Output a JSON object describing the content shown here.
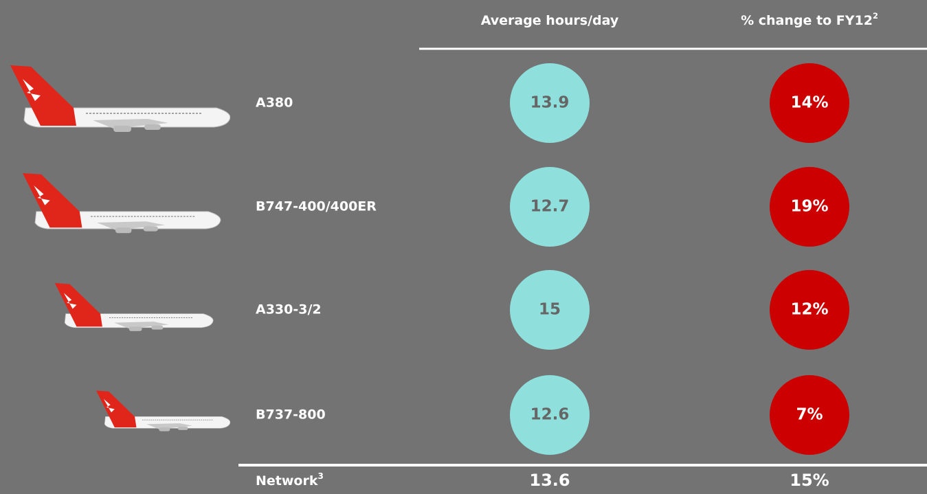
{
  "table": {
    "header": [
      {
        "text": "Average hours/day"
      },
      {
        "text": "% change to FY12",
        "note": "2"
      }
    ],
    "rows": [
      {
        "label": "A380",
        "hours": "13.9",
        "change": "14%"
      },
      {
        "label": "B747-400/400ER",
        "hours": "12.7",
        "change": "19%"
      },
      {
        "label": "A330-3/2",
        "hours": "15",
        "change": "12%"
      },
      {
        "label": "B737-800",
        "hours": "12.6",
        "change": "7%"
      }
    ],
    "total": {
      "label": "Network",
      "note": "3",
      "hours": "13.6",
      "change": "15%"
    }
  }
}
